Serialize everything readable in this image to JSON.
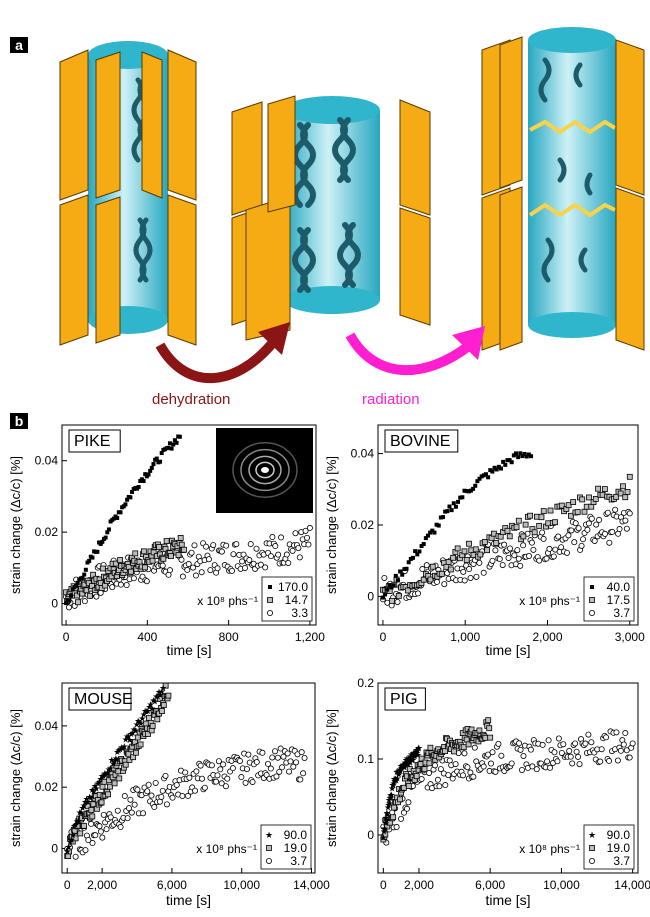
{
  "panel_a": {
    "letter": "a",
    "step1_label": "dehydration",
    "step1_color": "#8b1414",
    "step2_label": "radiation",
    "step2_color": "#ff1fd0",
    "cylinder_color": "#2fb6cc",
    "plate_color": "#f5ab13",
    "fibril_color": "#1d5a6a",
    "break_color": "#f8d34a"
  },
  "panel_b": {
    "letter": "b",
    "inset_description": "diffraction pattern"
  },
  "chart_data": [
    {
      "type": "scatter",
      "name": "PIKE",
      "title": "PIKE",
      "xlabel": "time [s]",
      "ylabel": "strain change (Δc/c) [%]",
      "xlim": [
        -20,
        1230
      ],
      "ylim": [
        -0.006,
        0.05
      ],
      "xticks": [
        0,
        400,
        800,
        1200
      ],
      "xtick_labels": [
        "0",
        "400",
        "800",
        "1,200"
      ],
      "yticks": [
        0,
        0.02,
        0.04
      ],
      "ytick_labels": [
        "0",
        "0.02",
        "0.04"
      ],
      "legend_unit": "x 10⁸ phs⁻¹",
      "legend_position": "bottom-right",
      "series": [
        {
          "name": "170.0",
          "marker": "filled-square",
          "x": [
            0,
            60,
            120,
            180,
            240,
            300,
            360,
            420,
            480,
            560
          ],
          "y": [
            0.0,
            0.006,
            0.012,
            0.018,
            0.024,
            0.029,
            0.034,
            0.038,
            0.042,
            0.047
          ]
        },
        {
          "name": "14.7",
          "marker": "gray-square",
          "x": [
            0,
            100,
            200,
            300,
            400,
            500,
            580
          ],
          "y": [
            0.001,
            0.004,
            0.008,
            0.011,
            0.013,
            0.015,
            0.016
          ]
        },
        {
          "name": "3.3",
          "marker": "open-circle",
          "x": [
            0,
            150,
            300,
            450,
            600,
            750,
            900,
            1050,
            1200
          ],
          "y": [
            0.002,
            0.006,
            0.009,
            0.011,
            0.012,
            0.013,
            0.014,
            0.015,
            0.017
          ]
        }
      ]
    },
    {
      "type": "scatter",
      "name": "BOVINE",
      "title": "BOVINE",
      "xlabel": "time [s]",
      "ylabel": "strain change (Δc/c) [%]",
      "xlim": [
        -60,
        3100
      ],
      "ylim": [
        -0.008,
        0.048
      ],
      "xticks": [
        0,
        1000,
        2000,
        3000
      ],
      "xtick_labels": [
        "0",
        "1,000",
        "2,000",
        "3,000"
      ],
      "yticks": [
        0,
        0.02,
        0.04
      ],
      "ytick_labels": [
        "0",
        "0.02",
        "0.04"
      ],
      "legend_unit": "x 10⁸ phs⁻¹",
      "legend_position": "bottom-right",
      "series": [
        {
          "name": "40.0",
          "marker": "filled-square",
          "x": [
            0,
            200,
            400,
            600,
            800,
            1000,
            1200,
            1400,
            1600,
            1800
          ],
          "y": [
            0.0,
            0.006,
            0.012,
            0.018,
            0.024,
            0.029,
            0.033,
            0.036,
            0.039,
            0.04
          ]
        },
        {
          "name": "17.5",
          "marker": "gray-square",
          "x": [
            0,
            500,
            1000,
            1500,
            2000,
            2500,
            3000
          ],
          "y": [
            0.0,
            0.006,
            0.012,
            0.017,
            0.022,
            0.027,
            0.031
          ]
        },
        {
          "name": "3.7",
          "marker": "open-circle",
          "x": [
            0,
            500,
            1000,
            1500,
            2000,
            2500,
            3000
          ],
          "y": [
            0.001,
            0.005,
            0.009,
            0.012,
            0.015,
            0.018,
            0.021
          ]
        }
      ]
    },
    {
      "type": "scatter",
      "name": "MOUSE",
      "title": "MOUSE",
      "xlabel": "time [s]",
      "ylabel": "strain change (Δc/c) [%]",
      "xlim": [
        -300,
        14200
      ],
      "ylim": [
        -0.008,
        0.054
      ],
      "xticks": [
        0,
        2000,
        6000,
        10000,
        14000
      ],
      "xtick_labels": [
        "0",
        "2,000",
        "6,000",
        "10,000",
        "14,000"
      ],
      "yticks": [
        0,
        0.02,
        0.04
      ],
      "ytick_labels": [
        "0",
        "0.02",
        "0.04"
      ],
      "legend_unit": "x 10⁸ phs⁻¹",
      "legend_position": "bottom-right",
      "series": [
        {
          "name": "90.0",
          "marker": "filled-star",
          "x": [
            0,
            500,
            1000,
            2000,
            3000,
            4000,
            5000,
            5500
          ],
          "y": [
            0.0,
            0.008,
            0.014,
            0.023,
            0.032,
            0.04,
            0.048,
            0.052
          ]
        },
        {
          "name": "19.0",
          "marker": "gray-square",
          "x": [
            0,
            1000,
            2000,
            3000,
            4000,
            5000,
            5800
          ],
          "y": [
            0.0,
            0.01,
            0.018,
            0.026,
            0.034,
            0.043,
            0.052
          ]
        },
        {
          "name": "3.7",
          "marker": "open-circle",
          "x": [
            0,
            1000,
            2000,
            4000,
            6000,
            8000,
            10000,
            12000,
            13600
          ],
          "y": [
            0.0,
            0.004,
            0.008,
            0.015,
            0.02,
            0.024,
            0.026,
            0.028,
            0.027
          ]
        }
      ]
    },
    {
      "type": "scatter",
      "name": "PIG",
      "title": "PIG",
      "xlabel": "time [s]",
      "ylabel": "strain change (Δc/c) [%]",
      "xlim": [
        -300,
        14300
      ],
      "ylim": [
        -0.05,
        0.2
      ],
      "xticks": [
        0,
        2000,
        6000,
        10000,
        14000
      ],
      "xtick_labels": [
        "0",
        "2,000",
        "6,000",
        "10,000",
        "14,000"
      ],
      "yticks": [
        0,
        0.1,
        0.2
      ],
      "ytick_labels": [
        "0",
        "0.1",
        "0.2"
      ],
      "legend_unit": "x 10⁸ phs⁻¹",
      "legend_position": "bottom-right",
      "series": [
        {
          "name": "90.0",
          "marker": "filled-star",
          "x": [
            0,
            300,
            600,
            1000,
            1500,
            2000
          ],
          "y": [
            0.0,
            0.04,
            0.07,
            0.09,
            0.1,
            0.11
          ]
        },
        {
          "name": "19.0",
          "marker": "gray-square",
          "x": [
            0,
            1000,
            2000,
            3000,
            4000,
            5000,
            6000
          ],
          "y": [
            0.0,
            0.06,
            0.09,
            0.11,
            0.12,
            0.13,
            0.14
          ]
        },
        {
          "name": "3.7",
          "marker": "open-circle",
          "x": [
            0,
            1000,
            2000,
            4000,
            6000,
            8000,
            10000,
            12000,
            14000
          ],
          "y": [
            0.0,
            0.04,
            0.07,
            0.09,
            0.1,
            0.105,
            0.11,
            0.115,
            0.12
          ]
        }
      ]
    }
  ]
}
